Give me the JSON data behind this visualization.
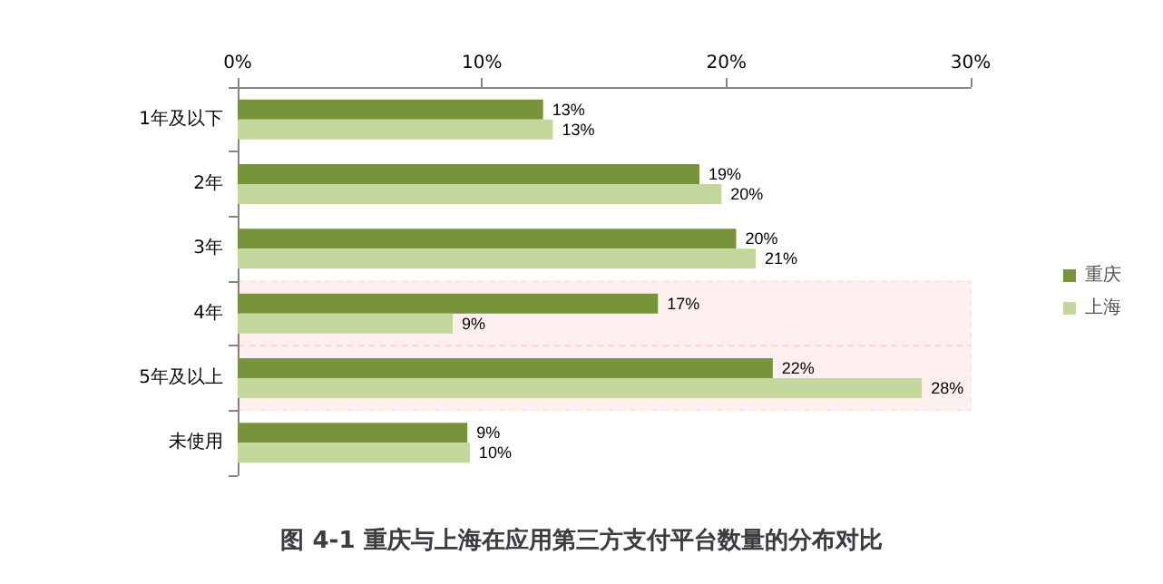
{
  "chart_data": {
    "type": "bar",
    "orientation": "horizontal",
    "title": "图 4-1 重庆与上海在应用第三方支付平台数量的分布对比",
    "categories": [
      "1年及以下",
      "2年",
      "3年",
      "4年",
      "5年及以上",
      "未使用"
    ],
    "series": [
      {
        "name": "重庆",
        "color": "#77933c",
        "values": [
          12.5,
          18.9,
          20.4,
          17.2,
          21.9,
          9.4
        ],
        "value_labels": [
          "13%",
          "19%",
          "20%",
          "17%",
          "22%",
          "9%"
        ]
      },
      {
        "name": "上海",
        "color": "#c3d69b",
        "values": [
          12.9,
          19.8,
          21.2,
          8.8,
          28.0,
          9.5
        ],
        "value_labels": [
          "13%",
          "20%",
          "21%",
          "9%",
          "28%",
          "10%"
        ]
      }
    ],
    "xlim": [
      0,
      30
    ],
    "xticks": [
      {
        "value": 0,
        "label": "0%"
      },
      {
        "value": 10,
        "label": "10%"
      },
      {
        "value": 20,
        "label": "20%"
      },
      {
        "value": 30,
        "label": "30%"
      }
    ],
    "bands": [
      {
        "axis": "y",
        "from": "4年",
        "to": "4年",
        "color": "#ff0000"
      },
      {
        "axis": "y",
        "from": "5年及以上",
        "to": "5年及以上",
        "color": "#ff0000"
      }
    ],
    "grid": false,
    "legend": "right"
  }
}
